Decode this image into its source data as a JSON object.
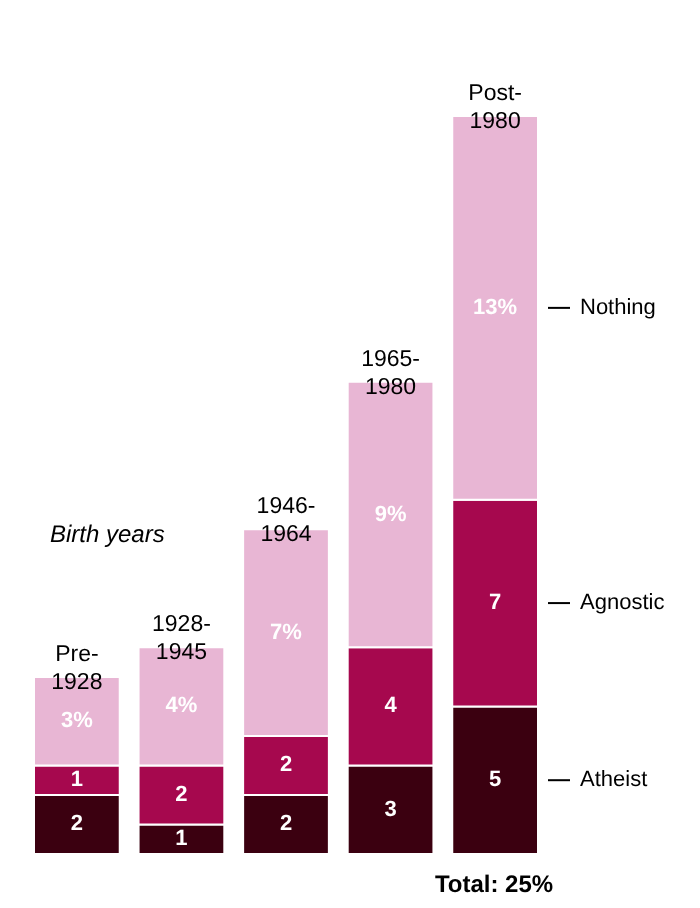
{
  "chart_data": {
    "type": "bar",
    "stacked": true,
    "categories": [
      "Pre-1928",
      "1928-1945",
      "1946-1964",
      "1965-1980",
      "Post-1980"
    ],
    "series": [
      {
        "name": "Atheist",
        "color": "#3b0010",
        "values": [
          2,
          1,
          2,
          3,
          5
        ],
        "value_labels": [
          "2",
          "1",
          "2",
          "3",
          "5"
        ]
      },
      {
        "name": "Agnostic",
        "color": "#a6084e",
        "values": [
          1,
          2,
          2,
          4,
          7
        ],
        "value_labels": [
          "1",
          "2",
          "2",
          "4",
          "7"
        ]
      },
      {
        "name": "Nothing",
        "color": "#e8b6d4",
        "values": [
          3,
          4,
          7,
          9,
          13
        ],
        "value_labels": [
          "3%",
          "4%",
          "7%",
          "9%",
          "13%"
        ]
      }
    ],
    "annotations": [
      "Birth years",
      "Total: 25%"
    ]
  }
}
